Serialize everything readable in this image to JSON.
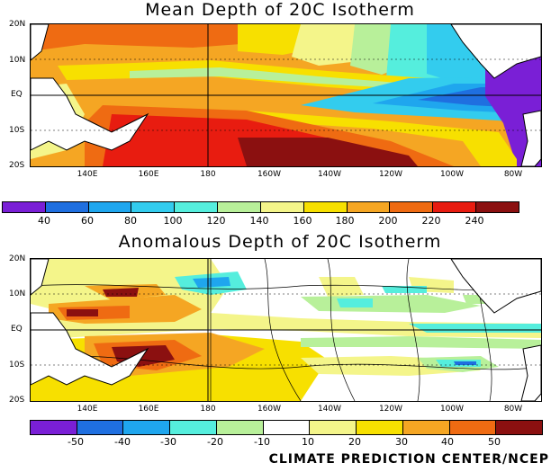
{
  "top": {
    "title": "Mean Depth of 20C Isotherm",
    "lat_labels": [
      "20N",
      "10N",
      "EQ",
      "10S",
      "20S"
    ],
    "lon_labels": [
      "140E",
      "160E",
      "180",
      "160W",
      "140W",
      "120W",
      "100W",
      "80W"
    ],
    "colorbar_labels": [
      "40",
      "60",
      "80",
      "100",
      "120",
      "140",
      "160",
      "180",
      "200",
      "220",
      "240"
    ],
    "colors": [
      "#7a1fd6",
      "#1f6fe0",
      "#1fa6ee",
      "#33ccee",
      "#55eedd",
      "#b8f09a",
      "#f4f58a",
      "#f7e000",
      "#f5a623",
      "#ef6b12",
      "#e81c10",
      "#8b1010"
    ]
  },
  "bottom": {
    "title": "Anomalous Depth of 20C Isotherm",
    "lat_labels": [
      "20N",
      "10N",
      "EQ",
      "10S",
      "20S"
    ],
    "lon_labels": [
      "140E",
      "160E",
      "180",
      "160W",
      "140W",
      "120W",
      "100W",
      "80W"
    ],
    "colorbar_labels": [
      "-50",
      "-40",
      "-30",
      "-20",
      "-10",
      "10",
      "20",
      "30",
      "40",
      "50"
    ],
    "colors": [
      "#7a1fd6",
      "#1f6fe0",
      "#1fa6ee",
      "#55eedd",
      "#b8f09a",
      "#ffffff",
      "#f4f58a",
      "#f7e000",
      "#f5a623",
      "#ef6b12",
      "#8b1010"
    ]
  },
  "credit": "CLIMATE PREDICTION CENTER/NCEP"
}
